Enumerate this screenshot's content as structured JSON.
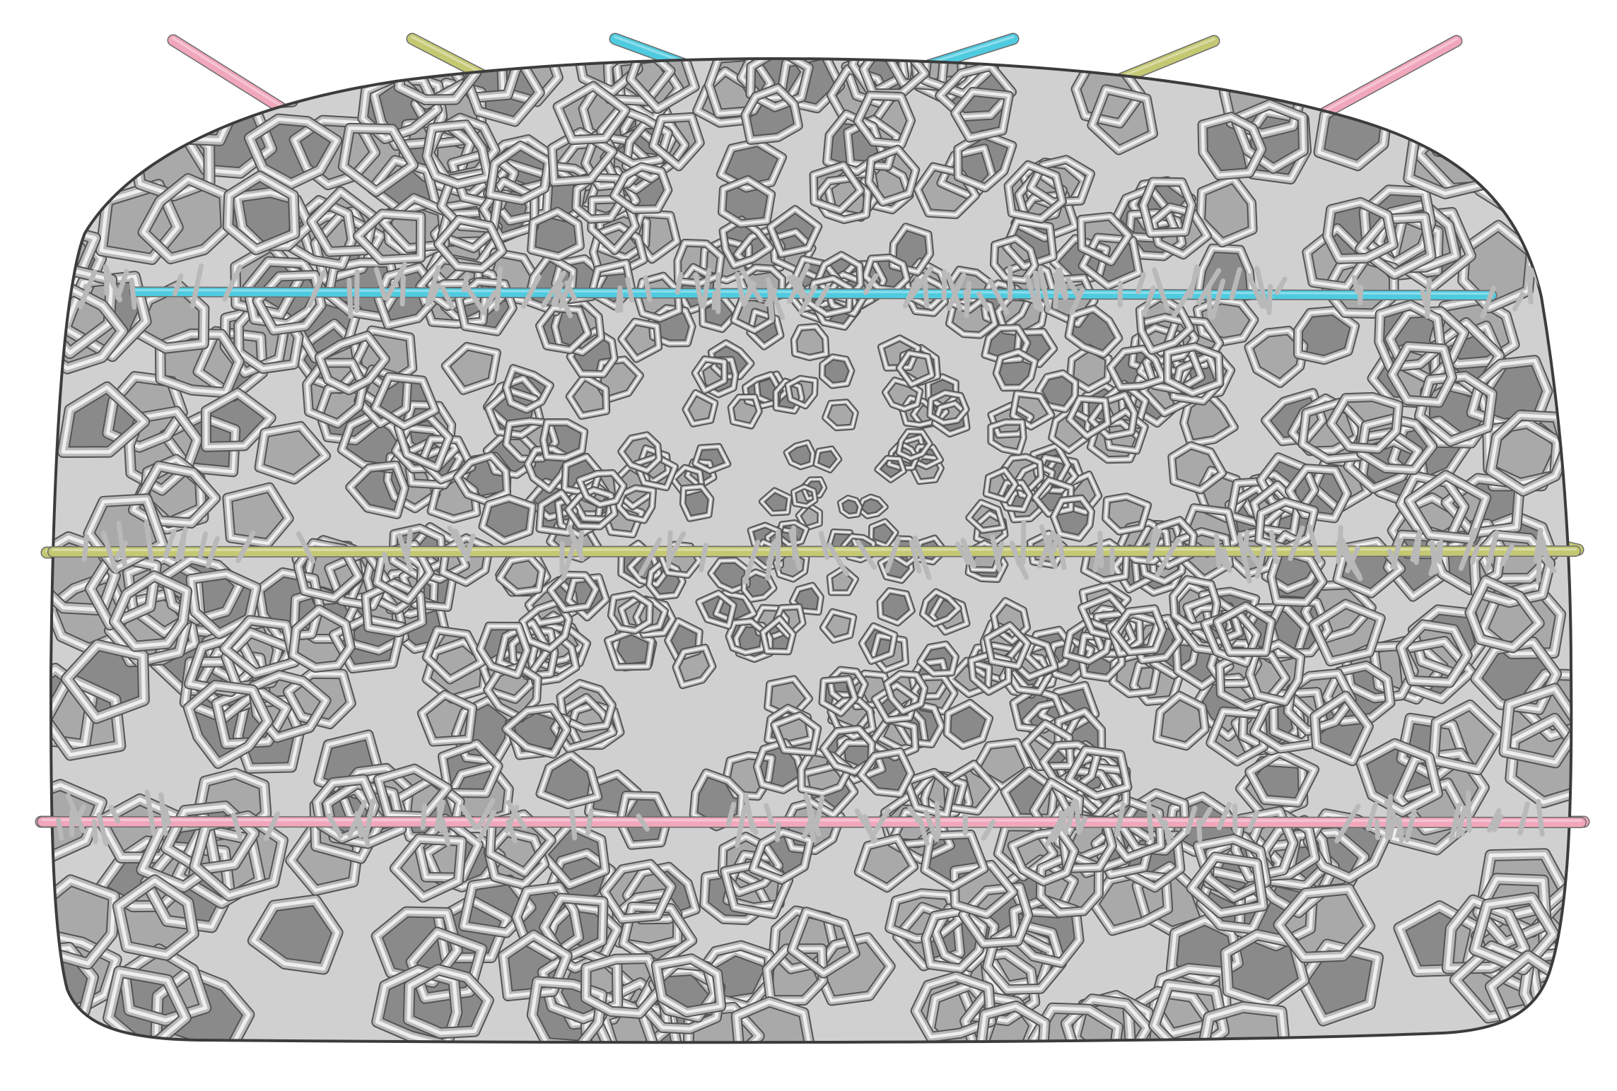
{
  "scene": {
    "background": "#ffffff",
    "object": "voronoi-lattice-dome",
    "lattice_colors": {
      "fill": "#d0d0d0",
      "strut_light": "#eeeeee",
      "strut_mid": "#b9b9b9",
      "shadow": "#545454",
      "outline": "#3c3c3c"
    },
    "rod_colors": {
      "pink": "#f1a7bb",
      "olive": "#c4c872",
      "cyan": "#4fcbe0"
    }
  }
}
